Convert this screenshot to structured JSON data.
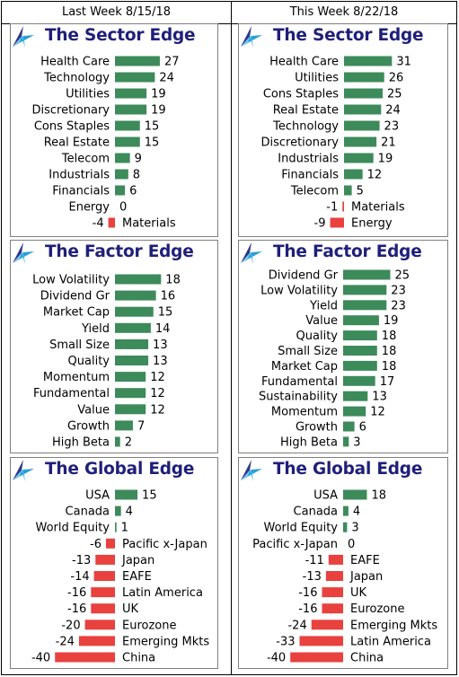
{
  "header": {
    "left": "Last Week 8/15/18",
    "right": "This Week 8/22/18"
  },
  "colors": {
    "positive": "#3d8a5a",
    "negative": "#e8413e",
    "title": "#1f1f7a"
  },
  "logo_icon": "compass-star-icon",
  "chart_data": [
    {
      "id": "sector-last",
      "type": "bar",
      "title": "The Sector Edge",
      "categories": [
        "Health Care",
        "Technology",
        "Utilities",
        "Discretionary",
        "Cons Staples",
        "Real Estate",
        "Telecom",
        "Industrials",
        "Financials",
        "Energy",
        "Materials"
      ],
      "values": [
        27,
        24,
        19,
        19,
        15,
        15,
        9,
        8,
        6,
        0,
        -4
      ]
    },
    {
      "id": "sector-this",
      "type": "bar",
      "title": "The Sector Edge",
      "categories": [
        "Health Care",
        "Utilities",
        "Cons Staples",
        "Real Estate",
        "Technology",
        "Discretionary",
        "Industrials",
        "Financials",
        "Telecom",
        "Materials",
        "Energy"
      ],
      "values": [
        31,
        26,
        25,
        24,
        23,
        21,
        19,
        12,
        5,
        -1,
        -9
      ]
    },
    {
      "id": "factor-last",
      "type": "bar",
      "title": "The Factor Edge",
      "categories": [
        "Low Volatility",
        "Dividend Gr",
        "Market Cap",
        "Yield",
        "Small Size",
        "Quality",
        "Momentum",
        "Fundamental",
        "Value",
        "Growth",
        "High Beta"
      ],
      "values": [
        18,
        16,
        15,
        14,
        13,
        13,
        12,
        12,
        12,
        7,
        2
      ]
    },
    {
      "id": "factor-this",
      "type": "bar",
      "title": "The Factor Edge",
      "categories": [
        "Dividend Gr",
        "Low Volatility",
        "Yield",
        "Value",
        "Quality",
        "Small Size",
        "Market Cap",
        "Fundamental",
        "Sustainability",
        "Momentum",
        "Growth",
        "High Beta"
      ],
      "values": [
        25,
        23,
        23,
        19,
        18,
        18,
        18,
        17,
        13,
        12,
        6,
        3
      ]
    },
    {
      "id": "global-last",
      "type": "bar",
      "title": "The Global Edge",
      "categories": [
        "USA",
        "Canada",
        "World Equity",
        "Pacific x-Japan",
        "Japan",
        "EAFE",
        "Latin America",
        "UK",
        "Eurozone",
        "Emerging Mkts",
        "China"
      ],
      "values": [
        15,
        4,
        1,
        -6,
        -13,
        -14,
        -16,
        -16,
        -20,
        -24,
        -40
      ]
    },
    {
      "id": "global-this",
      "type": "bar",
      "title": "The Global Edge",
      "categories": [
        "USA",
        "Canada",
        "World Equity",
        "Pacific x-Japan",
        "EAFE",
        "Japan",
        "UK",
        "Eurozone",
        "Emerging Mkts",
        "Latin America",
        "China"
      ],
      "values": [
        18,
        4,
        3,
        0,
        -11,
        -13,
        -16,
        -16,
        -24,
        -33,
        -40
      ]
    }
  ]
}
